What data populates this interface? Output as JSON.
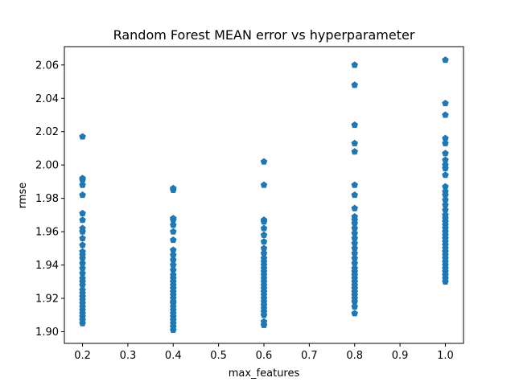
{
  "chart_data": {
    "type": "scatter",
    "title": "Random Forest MEAN error vs hyperparameter",
    "xlabel": "max_features",
    "ylabel": "rmse",
    "xlim": [
      0.16,
      1.04
    ],
    "ylim": [
      1.893,
      2.071
    ],
    "grid": false,
    "legend": "none",
    "marker": "pentagon",
    "color": "#1f77b4",
    "x_ticks": [
      0.2,
      0.3,
      0.4,
      0.5,
      0.6,
      0.7,
      0.8,
      0.9,
      1.0
    ],
    "x_tick_labels": [
      "0.2",
      "0.3",
      "0.4",
      "0.5",
      "0.6",
      "0.7",
      "0.8",
      "0.9",
      "1.0"
    ],
    "y_ticks": [
      1.9,
      1.92,
      1.94,
      1.96,
      1.98,
      2.0,
      2.02,
      2.04,
      2.06
    ],
    "y_tick_labels": [
      "1.90",
      "1.92",
      "1.94",
      "1.96",
      "1.98",
      "2.00",
      "2.02",
      "2.04",
      "2.06"
    ],
    "series": [
      {
        "x": 0.2,
        "y": [
          2.017,
          1.992,
          1.991,
          1.988,
          1.982,
          1.971,
          1.967,
          1.962,
          1.96,
          1.956,
          1.952,
          1.948,
          1.946,
          1.944,
          1.941,
          1.938,
          1.935,
          1.932,
          1.93,
          1.928,
          1.925,
          1.923,
          1.921,
          1.919,
          1.917,
          1.915,
          1.913,
          1.911,
          1.909,
          1.907,
          1.905
        ]
      },
      {
        "x": 0.4,
        "y": [
          1.986,
          1.985,
          1.968,
          1.967,
          1.964,
          1.96,
          1.955,
          1.949,
          1.946,
          1.943,
          1.94,
          1.937,
          1.934,
          1.932,
          1.93,
          1.928,
          1.926,
          1.924,
          1.922,
          1.92,
          1.918,
          1.917,
          1.915,
          1.913,
          1.911,
          1.909,
          1.907,
          1.905,
          1.903,
          1.901
        ]
      },
      {
        "x": 0.6,
        "y": [
          2.002,
          1.988,
          1.967,
          1.966,
          1.962,
          1.958,
          1.954,
          1.95,
          1.947,
          1.944,
          1.942,
          1.94,
          1.938,
          1.936,
          1.934,
          1.932,
          1.93,
          1.928,
          1.926,
          1.924,
          1.922,
          1.92,
          1.918,
          1.916,
          1.914,
          1.912,
          1.91,
          1.906,
          1.904
        ]
      },
      {
        "x": 0.8,
        "y": [
          2.06,
          2.048,
          2.024,
          2.013,
          2.008,
          1.988,
          1.982,
          1.974,
          1.969,
          1.967,
          1.965,
          1.962,
          1.959,
          1.956,
          1.953,
          1.95,
          1.947,
          1.944,
          1.941,
          1.938,
          1.936,
          1.934,
          1.932,
          1.93,
          1.928,
          1.926,
          1.924,
          1.922,
          1.92,
          1.918,
          1.915,
          1.911
        ]
      },
      {
        "x": 1.0,
        "y": [
          2.063,
          2.037,
          2.03,
          2.016,
          2.013,
          2.007,
          2.003,
          2.0,
          1.998,
          1.994,
          1.987,
          1.984,
          1.982,
          1.979,
          1.976,
          1.973,
          1.97,
          1.968,
          1.966,
          1.964,
          1.962,
          1.96,
          1.958,
          1.956,
          1.954,
          1.952,
          1.95,
          1.948,
          1.946,
          1.944,
          1.942,
          1.94,
          1.938,
          1.936,
          1.934,
          1.932,
          1.93
        ]
      }
    ]
  }
}
